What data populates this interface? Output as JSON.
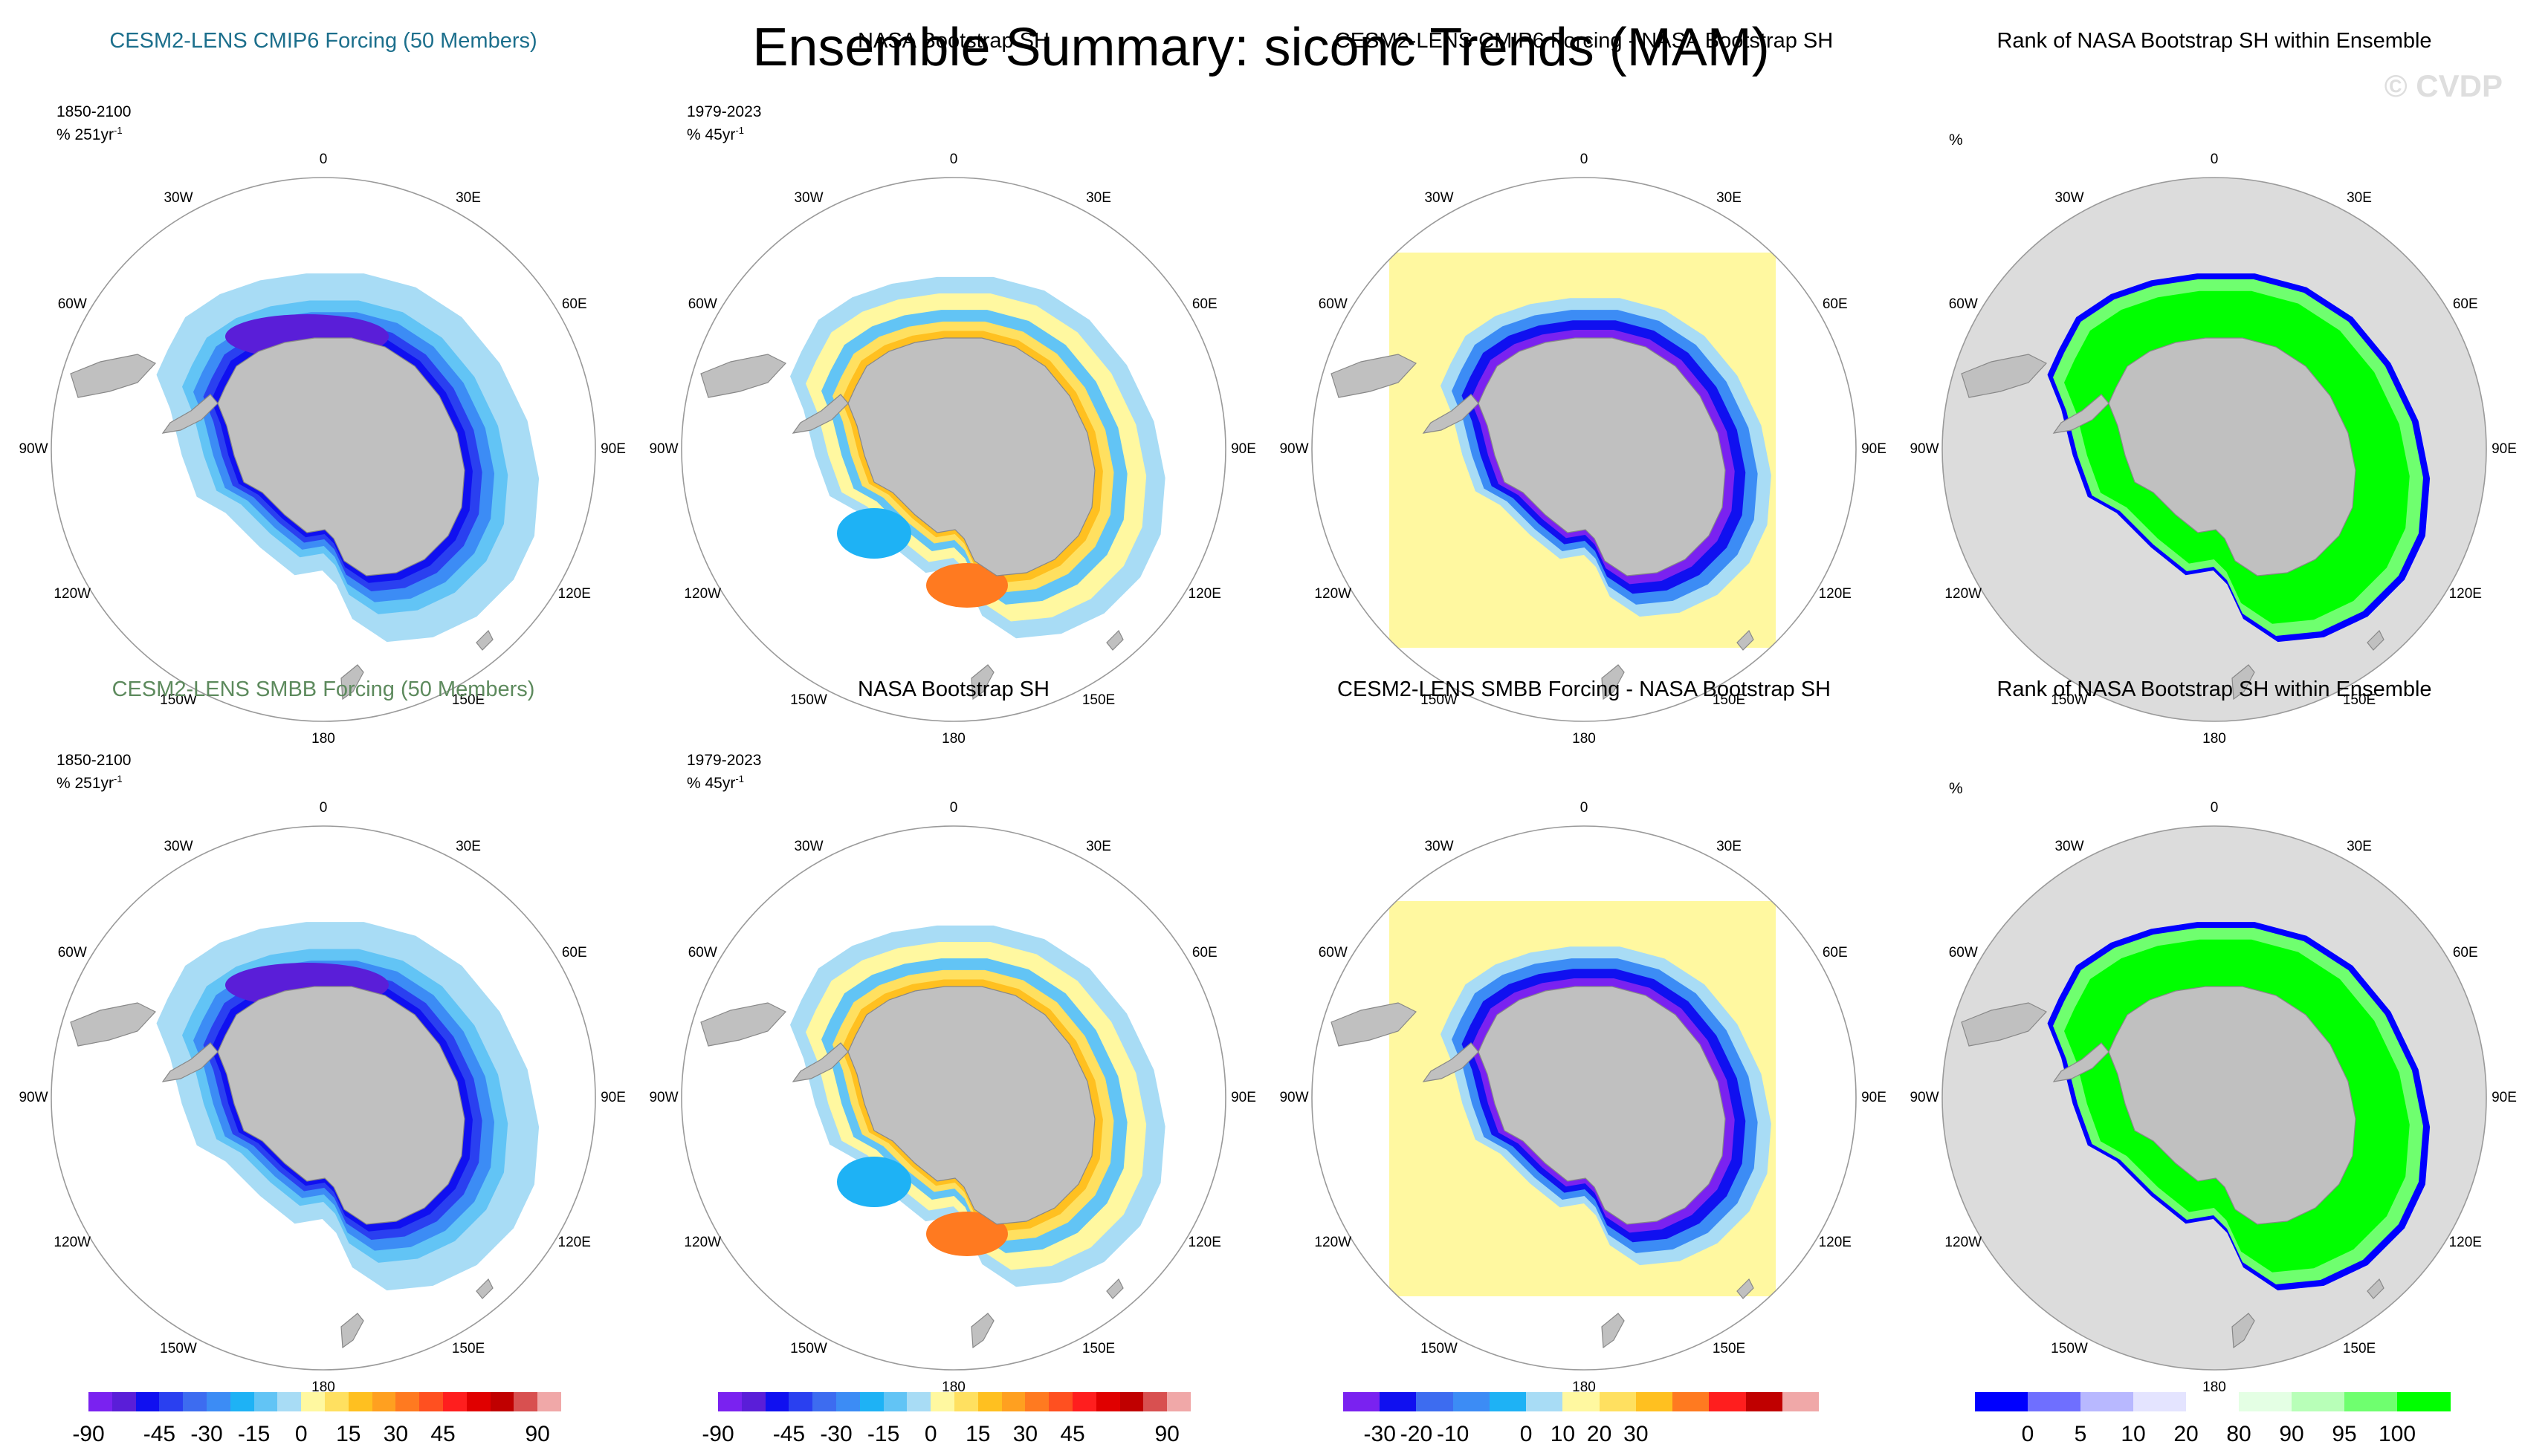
{
  "page": {
    "title": "Ensemble Summary: siconc Trends (MAM)",
    "watermark": "© CVDP"
  },
  "rows": [
    {
      "model": {
        "title": "CESM2-LENS CMIP6 Forcing (50 Members)",
        "title_color": "#1c6f8c",
        "period": "1850-2100",
        "units_base": "% 251yr",
        "units_exp": "-1"
      },
      "obs": {
        "title": "NASA Bootstrap SH",
        "period": "1979-2023",
        "units_base": "% 45yr",
        "units_exp": "-1"
      },
      "diff": {
        "title": "CESM2-LENS CMIP6 Forcing - NASA Bootstrap SH"
      },
      "rank": {
        "title": "Rank of NASA Bootstrap SH within Ensemble",
        "units": "%"
      }
    },
    {
      "model": {
        "title": "CESM2-LENS SMBB Forcing (50 Members)",
        "title_color": "#5d8a5d",
        "period": "1850-2100",
        "units_base": "% 251yr",
        "units_exp": "-1"
      },
      "obs": {
        "title": "NASA Bootstrap SH",
        "period": "1979-2023",
        "units_base": "% 45yr",
        "units_exp": "-1"
      },
      "diff": {
        "title": "CESM2-LENS SMBB Forcing - NASA Bootstrap SH"
      },
      "rank": {
        "title": "Rank of NASA Bootstrap SH within Ensemble",
        "units": "%"
      }
    }
  ],
  "longitude_labels": [
    "0",
    "30E",
    "60E",
    "90E",
    "120E",
    "150E",
    "180",
    "150W",
    "120W",
    "90W",
    "60W",
    "30W"
  ],
  "colors": {
    "land": "#c0c0c0",
    "coast": "#888888",
    "frame": "#9a9a9a",
    "trend_scale": [
      "#7a22f0",
      "#5a1ed8",
      "#1010f0",
      "#2a40f0",
      "#3d6cf0",
      "#3c8cf5",
      "#1eb2f5",
      "#62c4f5",
      "#a8dcf5",
      "#fff8a0",
      "#ffe060",
      "#ffc020",
      "#ffa020",
      "#ff7a20",
      "#ff5020",
      "#ff1e1e",
      "#e00000",
      "#c00000",
      "#d85050",
      "#f0a8a8"
    ],
    "diff_scale": [
      "#7a22f0",
      "#1010f0",
      "#3d6cf0",
      "#3c8cf5",
      "#1eb2f5",
      "#a8dcf5",
      "#fff8a0",
      "#ffe060",
      "#ffc020",
      "#ff7a20",
      "#ff1e1e",
      "#c00000",
      "#f0a8a8"
    ],
    "rank_scale": [
      "#0000ff",
      "#6f6fff",
      "#b8b8ff",
      "#e4e4ff",
      "#ffffff",
      "#e4ffe4",
      "#b8ffb8",
      "#6fff6f",
      "#00ff00"
    ]
  },
  "chart_data": [
    {
      "type": "heatmap",
      "panel": "model-trend",
      "projection": "south-polar-stereographic",
      "legend": {
        "ticks": [
          "-90",
          "-45",
          "-30",
          "-15",
          "0",
          "15",
          "30",
          "45",
          "90"
        ],
        "tick_segments": [
          0,
          3,
          5,
          7,
          9,
          11,
          13,
          15,
          19
        ]
      },
      "values_range": [
        -90,
        90
      ]
    },
    {
      "type": "heatmap",
      "panel": "observed-trend",
      "projection": "south-polar-stereographic",
      "legend": {
        "ticks": [
          "-90",
          "-45",
          "-30",
          "-15",
          "0",
          "15",
          "30",
          "45",
          "90"
        ],
        "tick_segments": [
          0,
          3,
          5,
          7,
          9,
          11,
          13,
          15,
          19
        ]
      },
      "values_range": [
        -90,
        90
      ]
    },
    {
      "type": "heatmap",
      "panel": "model-minus-observed",
      "projection": "south-polar-stereographic",
      "legend": {
        "ticks": [
          "-30",
          "-20",
          "-10",
          "0",
          "10",
          "20",
          "30"
        ],
        "tick_segments": [
          1,
          2,
          3,
          5,
          6,
          7,
          8
        ]
      },
      "values_range": [
        -30,
        30
      ]
    },
    {
      "type": "heatmap",
      "panel": "rank-within-ensemble",
      "projection": "south-polar-stereographic",
      "legend": {
        "ticks": [
          "0",
          "5",
          "10",
          "20",
          "80",
          "90",
          "95",
          "100"
        ],
        "tick_segments": [
          1,
          2,
          3,
          4,
          5,
          6,
          7,
          8
        ]
      },
      "values_range": [
        0,
        100
      ]
    }
  ]
}
